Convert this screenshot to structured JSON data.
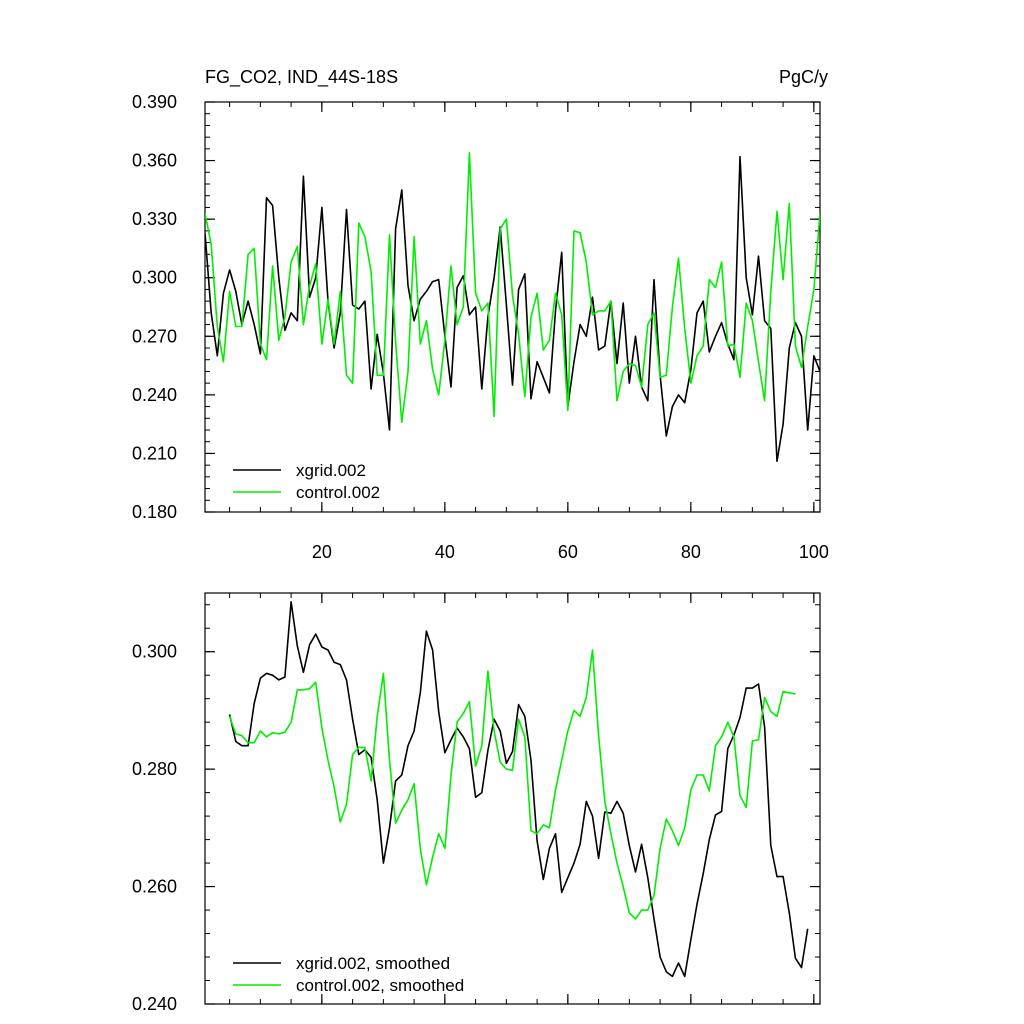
{
  "header": {
    "title": "FG_CO2, IND_44S-18S",
    "units": "PgC/y"
  },
  "colors": {
    "xgrid": "#000000",
    "control": "#00ee00",
    "axis": "#000000",
    "background": "#ffffff"
  },
  "chart_data": [
    {
      "type": "line",
      "title": "FG_CO2, IND_44S-18S",
      "units": "PgC/y",
      "xlabel": "",
      "ylabel": "",
      "xlim": [
        1,
        101
      ],
      "ylim": [
        0.18,
        0.39
      ],
      "x_ticks": [
        20,
        40,
        60,
        80,
        100
      ],
      "y_ticks": [
        0.18,
        0.21,
        0.24,
        0.27,
        0.3,
        0.33,
        0.36,
        0.39
      ],
      "x_tick_labels": [
        "20",
        "40",
        "60",
        "80",
        "100"
      ],
      "y_tick_labels": [
        "0.180",
        "0.210",
        "0.240",
        "0.270",
        "0.300",
        "0.330",
        "0.360",
        "0.390"
      ],
      "grid": false,
      "legend_position": "bottom-left",
      "x_start": 1,
      "series": [
        {
          "name": "xgrid.002",
          "color": "#000000",
          "values": [
            0.323,
            0.282,
            0.26,
            0.292,
            0.304,
            0.293,
            0.276,
            0.288,
            0.276,
            0.261,
            0.341,
            0.337,
            0.3,
            0.273,
            0.282,
            0.278,
            0.352,
            0.29,
            0.3,
            0.336,
            0.288,
            0.264,
            0.282,
            0.335,
            0.286,
            0.284,
            0.288,
            0.243,
            0.271,
            0.251,
            0.222,
            0.325,
            0.345,
            0.296,
            0.278,
            0.289,
            0.293,
            0.298,
            0.299,
            0.27,
            0.244,
            0.295,
            0.301,
            0.281,
            0.285,
            0.243,
            0.28,
            0.3,
            0.326,
            0.286,
            0.245,
            0.294,
            0.302,
            0.238,
            0.257,
            0.249,
            0.241,
            0.283,
            0.313,
            0.234,
            0.257,
            0.276,
            0.27,
            0.29,
            0.263,
            0.265,
            0.288,
            0.256,
            0.287,
            0.246,
            0.27,
            0.244,
            0.237,
            0.299,
            0.25,
            0.219,
            0.234,
            0.24,
            0.236,
            0.253,
            0.282,
            0.288,
            0.262,
            0.27,
            0.277,
            0.266,
            0.258,
            0.362,
            0.3,
            0.281,
            0.311,
            0.278,
            0.274,
            0.206,
            0.225,
            0.264,
            0.277,
            0.27,
            0.222,
            0.26,
            0.252
          ]
        },
        {
          "name": "control.002",
          "color": "#00ee00",
          "values": [
            0.333,
            0.317,
            0.275,
            0.257,
            0.293,
            0.275,
            0.275,
            0.312,
            0.315,
            0.266,
            0.258,
            0.306,
            0.268,
            0.28,
            0.308,
            0.316,
            0.276,
            0.296,
            0.307,
            0.266,
            0.289,
            0.266,
            0.293,
            0.25,
            0.246,
            0.328,
            0.321,
            0.303,
            0.25,
            0.25,
            0.322,
            0.267,
            0.226,
            0.252,
            0.321,
            0.266,
            0.278,
            0.253,
            0.24,
            0.268,
            0.306,
            0.276,
            0.285,
            0.364,
            0.292,
            0.283,
            0.287,
            0.229,
            0.325,
            0.33,
            0.291,
            0.271,
            0.239,
            0.28,
            0.292,
            0.263,
            0.268,
            0.292,
            0.281,
            0.232,
            0.324,
            0.323,
            0.308,
            0.281,
            0.283,
            0.283,
            0.288,
            0.237,
            0.252,
            0.256,
            0.255,
            0.244,
            0.276,
            0.282,
            0.249,
            0.25,
            0.285,
            0.31,
            0.274,
            0.246,
            0.26,
            0.265,
            0.299,
            0.295,
            0.308,
            0.265,
            0.266,
            0.249,
            0.287,
            0.278,
            0.257,
            0.237,
            0.293,
            0.334,
            0.299,
            0.338,
            0.265,
            0.254,
            0.275,
            0.294,
            0.333
          ]
        }
      ]
    },
    {
      "type": "line",
      "title": "",
      "xlabel": "",
      "ylabel": "",
      "xlim": [
        1,
        101
      ],
      "ylim": [
        0.24,
        0.31
      ],
      "x_ticks": [
        20,
        40,
        60,
        80,
        100
      ],
      "y_ticks": [
        0.24,
        0.26,
        0.28,
        0.3
      ],
      "y_tick_labels": [
        "0.240",
        "0.260",
        "0.280",
        "0.300"
      ],
      "grid": false,
      "legend_position": "bottom-left",
      "x_start": 5,
      "series": [
        {
          "name": "xgrid.002, smoothed",
          "color": "#000000",
          "values": [
            0.2893,
            0.2847,
            0.284,
            0.284,
            0.2912,
            0.2955,
            0.2963,
            0.296,
            0.2952,
            0.2957,
            0.3085,
            0.301,
            0.2965,
            0.3012,
            0.303,
            0.3008,
            0.3003,
            0.2982,
            0.2978,
            0.2952,
            0.2885,
            0.2825,
            0.2833,
            0.282,
            0.2748,
            0.264,
            0.27,
            0.278,
            0.279,
            0.284,
            0.2865,
            0.293,
            0.3035,
            0.3003,
            0.2898,
            0.2828,
            0.285,
            0.287,
            0.2855,
            0.2835,
            0.2752,
            0.276,
            0.2832,
            0.2885,
            0.2865,
            0.281,
            0.283,
            0.291,
            0.289,
            0.2815,
            0.2678,
            0.2612,
            0.2665,
            0.269,
            0.259,
            0.2615,
            0.264,
            0.2672,
            0.2745,
            0.272,
            0.2648,
            0.2727,
            0.2725,
            0.2745,
            0.2725,
            0.267,
            0.2625,
            0.2672,
            0.2615,
            0.2545,
            0.248,
            0.2455,
            0.2447,
            0.247,
            0.2447,
            0.251,
            0.257,
            0.2622,
            0.268,
            0.2722,
            0.2728,
            0.2835,
            0.2858,
            0.2888,
            0.2938,
            0.2938,
            0.2945,
            0.2872,
            0.267,
            0.2617,
            0.2617,
            0.2555,
            0.2478,
            0.2462,
            0.2528
          ]
        },
        {
          "name": "control.002, smoothed",
          "color": "#00ee00",
          "values": [
            0.289,
            0.286,
            0.2857,
            0.2845,
            0.2845,
            0.2865,
            0.2855,
            0.2862,
            0.286,
            0.2863,
            0.288,
            0.2935,
            0.2935,
            0.2937,
            0.2948,
            0.287,
            0.2815,
            0.277,
            0.271,
            0.274,
            0.2825,
            0.2837,
            0.2837,
            0.278,
            0.289,
            0.2963,
            0.2815,
            0.2708,
            0.273,
            0.2748,
            0.2775,
            0.2665,
            0.2603,
            0.265,
            0.269,
            0.2665,
            0.279,
            0.288,
            0.2895,
            0.2915,
            0.2805,
            0.284,
            0.2967,
            0.2865,
            0.2812,
            0.28,
            0.2798,
            0.2885,
            0.2855,
            0.2695,
            0.269,
            0.2705,
            0.27,
            0.2765,
            0.2815,
            0.2865,
            0.29,
            0.289,
            0.2922,
            0.3003,
            0.2857,
            0.2745,
            0.269,
            0.264,
            0.26,
            0.2555,
            0.2545,
            0.256,
            0.256,
            0.2585,
            0.2665,
            0.2715,
            0.2695,
            0.267,
            0.27,
            0.2765,
            0.279,
            0.279,
            0.2763,
            0.284,
            0.2855,
            0.288,
            0.2855,
            0.2755,
            0.2735,
            0.2848,
            0.285,
            0.2922,
            0.2898,
            0.289,
            0.2932,
            0.293,
            0.2928
          ]
        }
      ]
    }
  ]
}
